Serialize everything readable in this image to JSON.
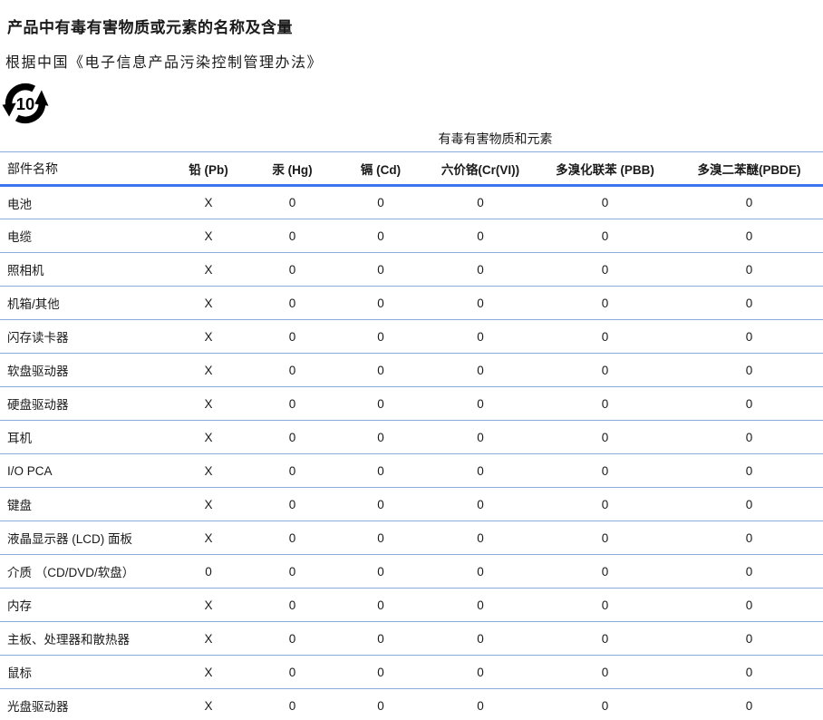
{
  "page": {
    "title": "产品中有毒有害物质或元素的名称及含量",
    "subtitle": "根据中国《电子信息产品污染控制管理办法》",
    "efup_years": "10"
  },
  "colors": {
    "header_rule_blue": "#3b76ee",
    "row_rule_blue": "#8aabdc",
    "text_black": "#1a1a1a",
    "symbol_black": "#000000"
  },
  "table": {
    "span_header": "有毒有害物质和元素",
    "columns": [
      "部件名称",
      "铅 (Pb)",
      "汞 (Hg)",
      "镉 (Cd)",
      "六价铬(Cr(VI))",
      "多溴化联苯 (PBB)",
      "多溴二苯醚(PBDE)"
    ],
    "rows": [
      {
        "name": "电池",
        "values": [
          "X",
          "0",
          "0",
          "0",
          "0",
          "0"
        ]
      },
      {
        "name": "电缆",
        "values": [
          "X",
          "0",
          "0",
          "0",
          "0",
          "0"
        ]
      },
      {
        "name": "照相机",
        "values": [
          "X",
          "0",
          "0",
          "0",
          "0",
          "0"
        ]
      },
      {
        "name": "机箱/其他",
        "values": [
          "X",
          "0",
          "0",
          "0",
          "0",
          "0"
        ]
      },
      {
        "name": "闪存读卡器",
        "values": [
          "X",
          "0",
          "0",
          "0",
          "0",
          "0"
        ]
      },
      {
        "name": "软盘驱动器",
        "values": [
          "X",
          "0",
          "0",
          "0",
          "0",
          "0"
        ]
      },
      {
        "name": "硬盘驱动器",
        "values": [
          "X",
          "0",
          "0",
          "0",
          "0",
          "0"
        ]
      },
      {
        "name": "耳机",
        "values": [
          "X",
          "0",
          "0",
          "0",
          "0",
          "0"
        ]
      },
      {
        "name": "I/O PCA",
        "values": [
          "X",
          "0",
          "0",
          "0",
          "0",
          "0"
        ]
      },
      {
        "name": "键盘",
        "values": [
          "X",
          "0",
          "0",
          "0",
          "0",
          "0"
        ]
      },
      {
        "name": "液晶显示器 (LCD) 面板",
        "values": [
          "X",
          "0",
          "0",
          "0",
          "0",
          "0"
        ]
      },
      {
        "name": "介质 （CD/DVD/软盘）",
        "values": [
          "0",
          "0",
          "0",
          "0",
          "0",
          "0"
        ]
      },
      {
        "name": "内存",
        "values": [
          "X",
          "0",
          "0",
          "0",
          "0",
          "0"
        ]
      },
      {
        "name": "主板、处理器和散热器",
        "values": [
          "X",
          "0",
          "0",
          "0",
          "0",
          "0"
        ]
      },
      {
        "name": "鼠标",
        "values": [
          "X",
          "0",
          "0",
          "0",
          "0",
          "0"
        ]
      },
      {
        "name": "光盘驱动器",
        "values": [
          "X",
          "0",
          "0",
          "0",
          "0",
          "0"
        ]
      }
    ]
  }
}
